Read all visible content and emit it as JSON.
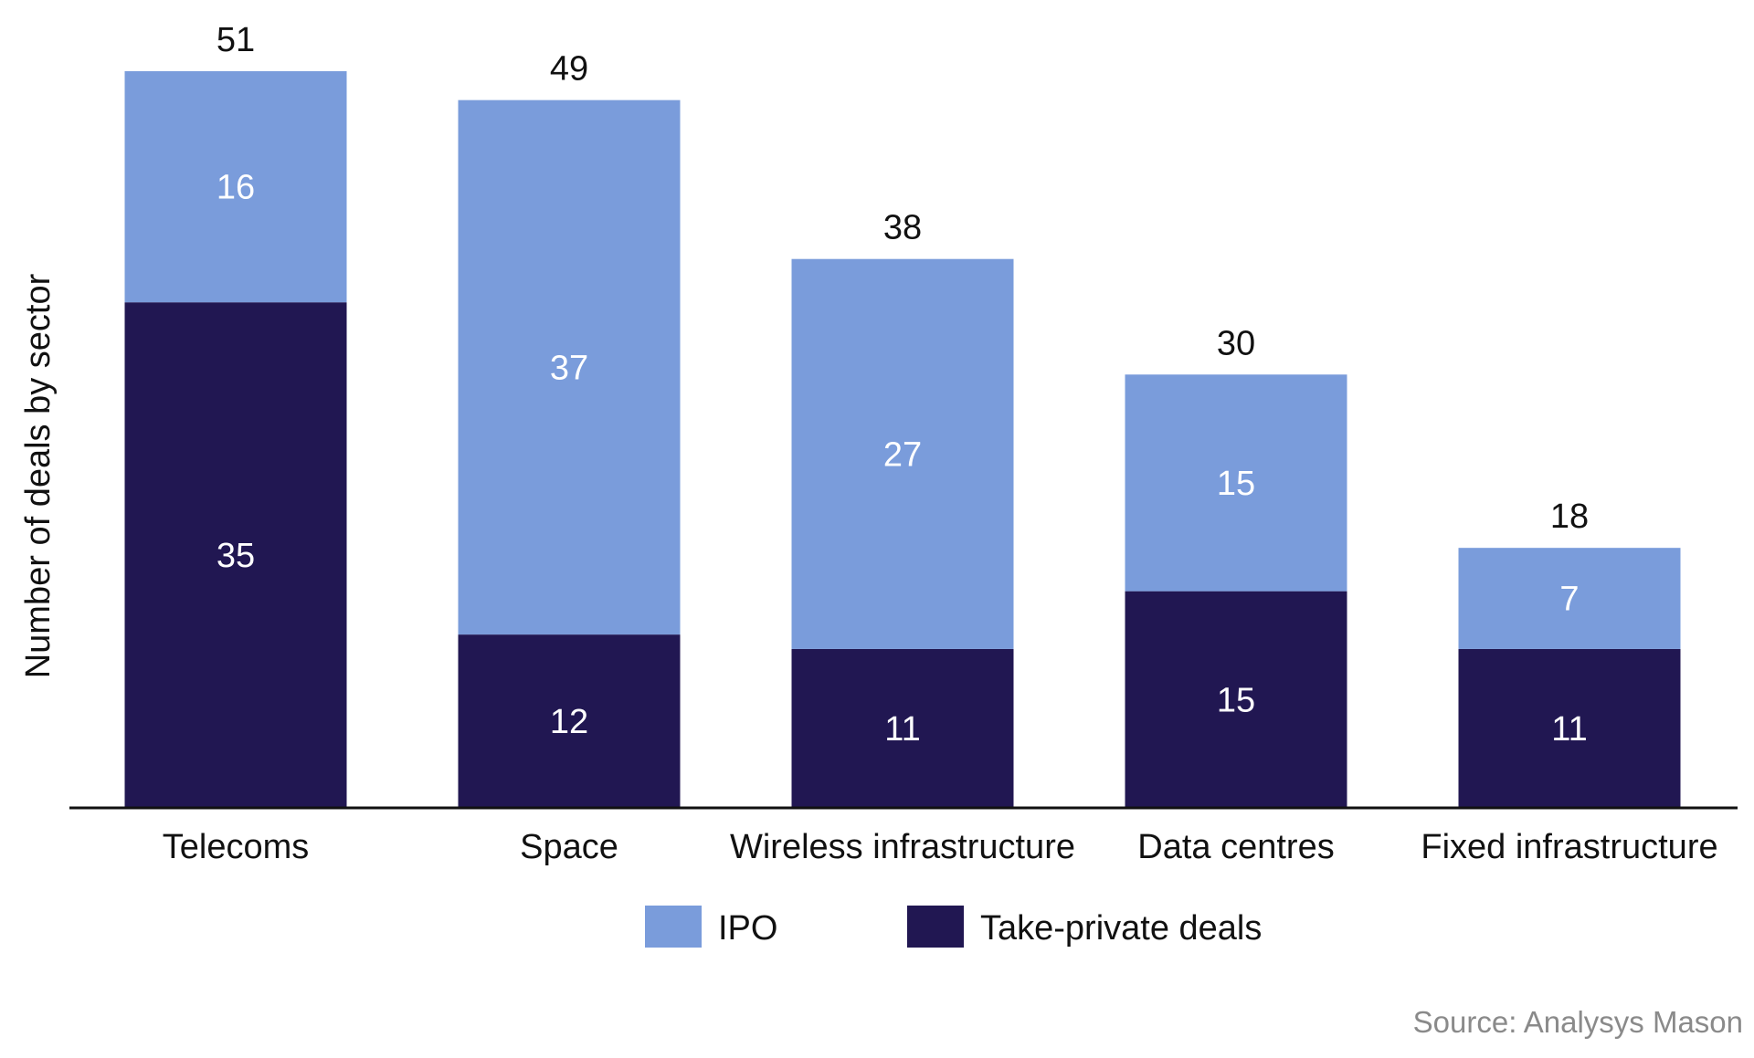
{
  "chart_data": {
    "type": "bar",
    "stacked": true,
    "categories": [
      "Telecoms",
      "Space",
      "Wireless infrastructure",
      "Data centres",
      "Fixed infrastructure"
    ],
    "series": [
      {
        "name": "Take-private deals",
        "values": [
          35,
          12,
          11,
          15,
          11
        ],
        "color": "#211752"
      },
      {
        "name": "IPO",
        "values": [
          16,
          37,
          27,
          15,
          7
        ],
        "color": "#7a9cdb"
      }
    ],
    "totals": [
      51,
      49,
      38,
      30,
      18
    ],
    "ylabel": "Number of deals by sector",
    "xlabel": "",
    "ylim": [
      0,
      51
    ],
    "grid": false,
    "legend": {
      "placement": "bottom",
      "order": [
        "IPO",
        "Take-private deals"
      ]
    }
  },
  "source": "Source: Analysys Mason"
}
